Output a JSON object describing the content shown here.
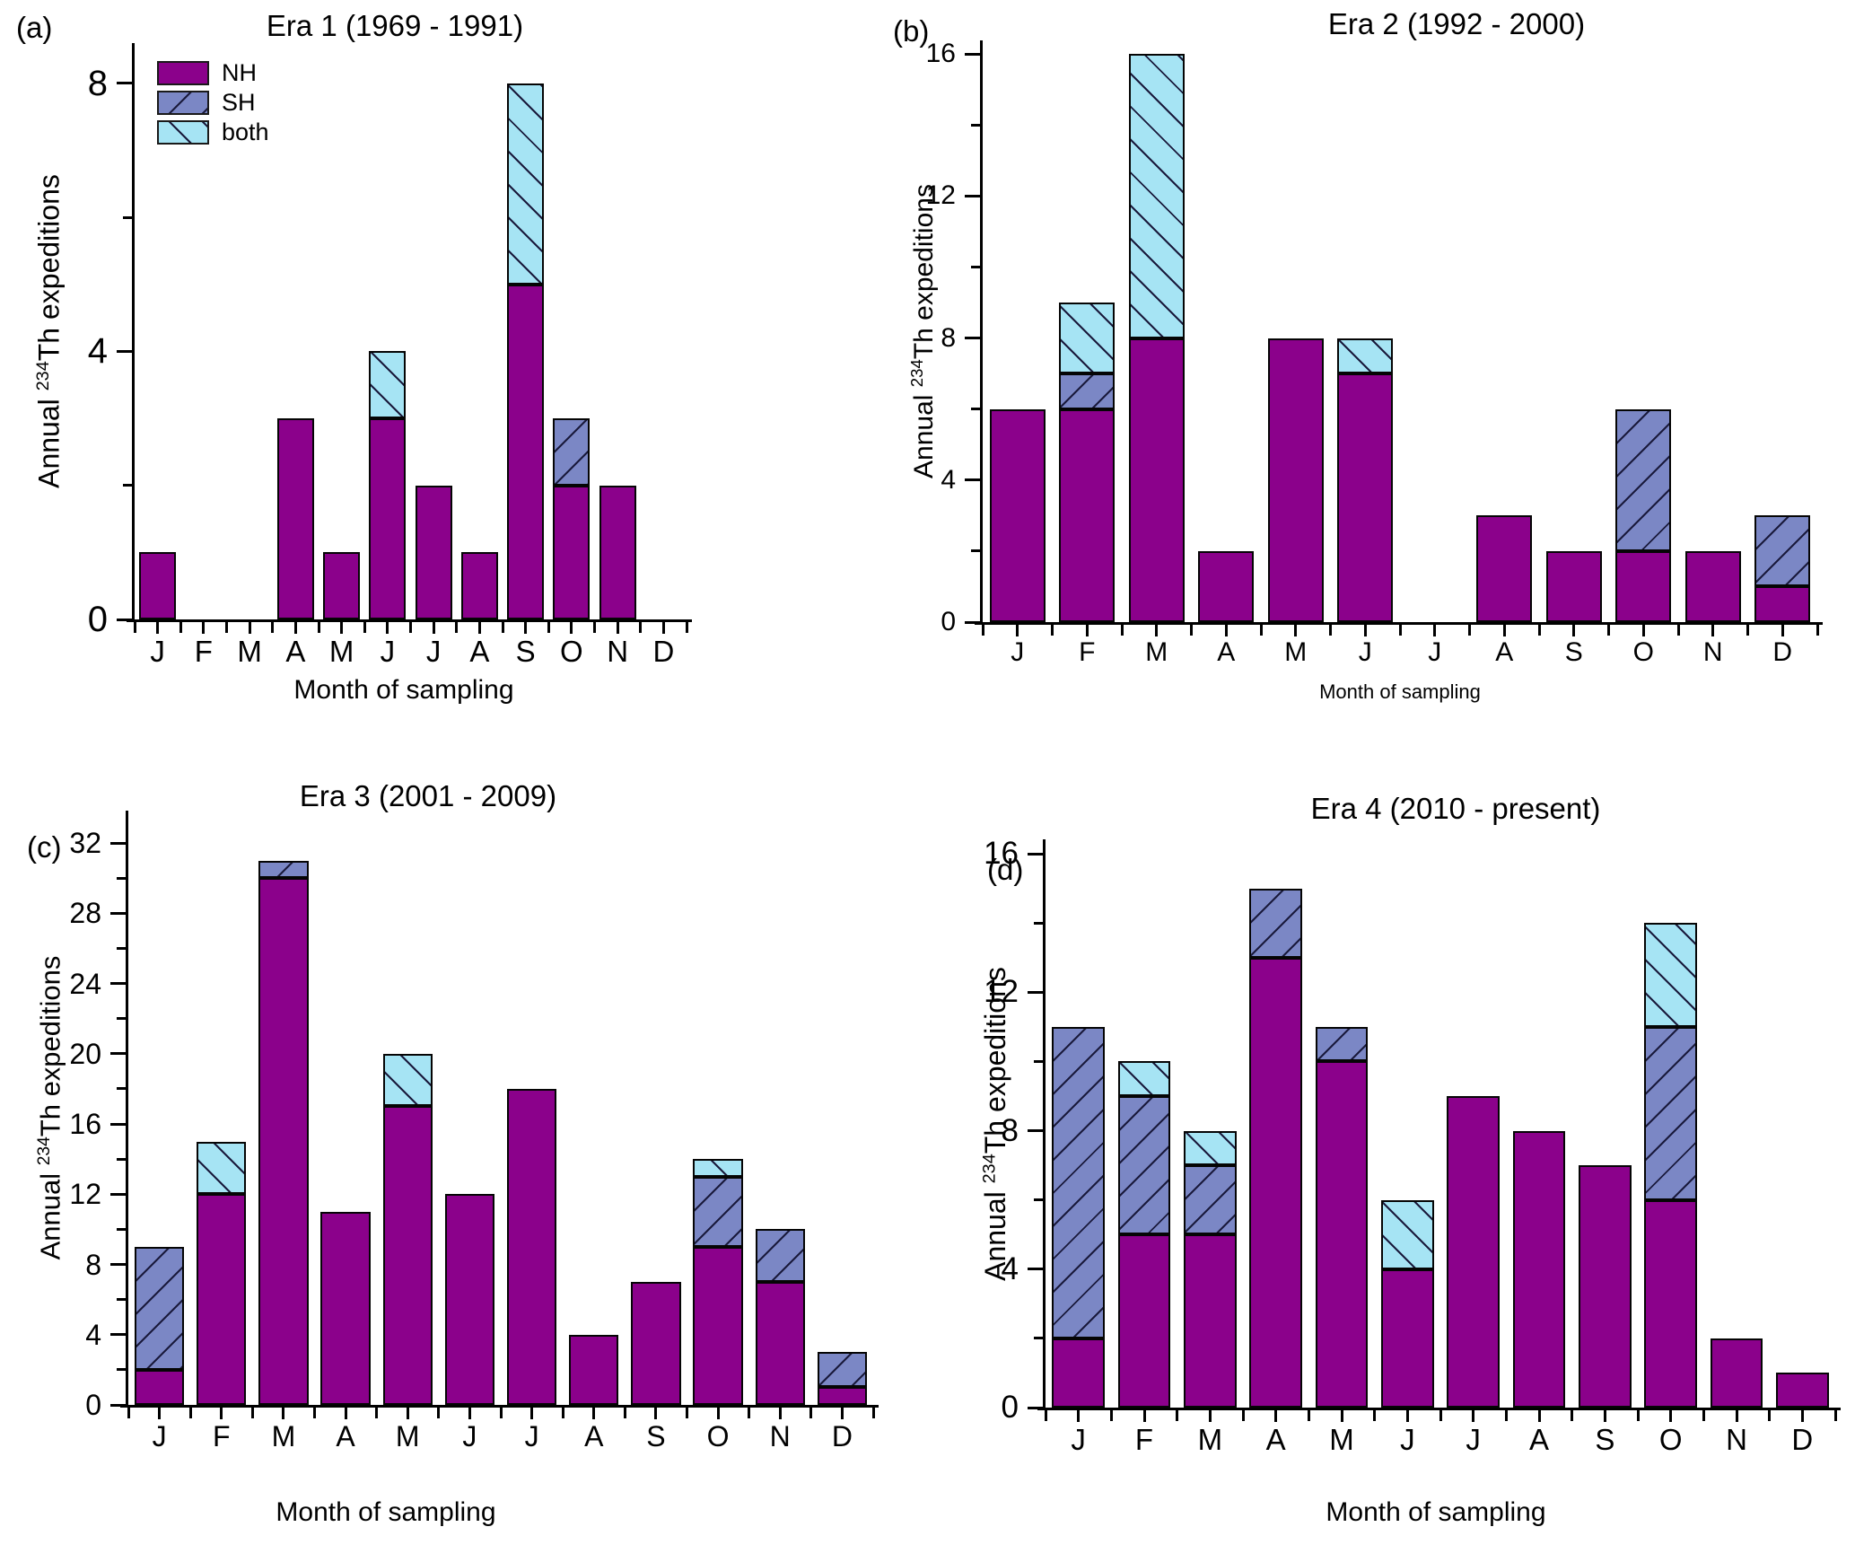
{
  "figure": {
    "ylabel_prefix": "Annual ",
    "ylabel_sup": "234",
    "ylabel_rest": "Th expeditions",
    "xlabel": "Month of sampling",
    "months": [
      "J",
      "F",
      "M",
      "A",
      "M",
      "J",
      "J",
      "A",
      "S",
      "O",
      "N",
      "D"
    ],
    "colors": {
      "NH": "#8B018B",
      "SH": "#7B87C5",
      "both": "#A6E4F4",
      "hatch": "#1A1A3C",
      "axis": "#000000"
    }
  },
  "legend": {
    "position": "upper-left of panel (a)",
    "items": [
      {
        "label": "NH"
      },
      {
        "label": "SH"
      },
      {
        "label": "both"
      }
    ]
  },
  "chart_data": [
    {
      "panel": "(a)",
      "type": "bar",
      "stacked": true,
      "title": "Era 1 (1969 - 1991)",
      "xlabel": "Month of sampling",
      "ylabel": "Annual 234Th expeditions",
      "categories": [
        "J",
        "F",
        "M",
        "A",
        "M",
        "J",
        "J",
        "A",
        "S",
        "O",
        "N",
        "D"
      ],
      "ylim": [
        0,
        8.6
      ],
      "yticks_labeled": [
        0,
        4,
        8
      ],
      "yticks_minor": [
        2,
        6
      ],
      "grid": false,
      "series": [
        {
          "name": "NH",
          "values": [
            1,
            0,
            0,
            3,
            1,
            3,
            2,
            1,
            5,
            2,
            2,
            0
          ]
        },
        {
          "name": "SH",
          "values": [
            0,
            0,
            0,
            0,
            0,
            0,
            0,
            0,
            0,
            1,
            0,
            0
          ]
        },
        {
          "name": "both",
          "values": [
            0,
            0,
            0,
            0,
            0,
            1,
            0,
            0,
            3,
            0,
            0,
            0
          ]
        }
      ]
    },
    {
      "panel": "(b)",
      "type": "bar",
      "stacked": true,
      "title": "Era 2 (1992 - 2000)",
      "xlabel": "Month of sampling",
      "ylabel": "Annual 234Th expeditions",
      "categories": [
        "J",
        "F",
        "M",
        "A",
        "M",
        "J",
        "J",
        "A",
        "S",
        "O",
        "N",
        "D"
      ],
      "ylim": [
        0,
        16.4
      ],
      "yticks_labeled": [
        0,
        4,
        8,
        12,
        16
      ],
      "yticks_minor": [
        2,
        6,
        10,
        14
      ],
      "grid": false,
      "series": [
        {
          "name": "NH",
          "values": [
            6,
            6,
            8,
            2,
            8,
            7,
            0,
            3,
            2,
            2,
            2,
            1
          ]
        },
        {
          "name": "SH",
          "values": [
            0,
            1,
            0,
            0,
            0,
            0,
            0,
            0,
            0,
            4,
            0,
            2
          ]
        },
        {
          "name": "both",
          "values": [
            0,
            2,
            8,
            0,
            0,
            1,
            0,
            0,
            0,
            0,
            0,
            0
          ]
        }
      ]
    },
    {
      "panel": "(c)",
      "type": "bar",
      "stacked": true,
      "title": "Era 3 (2001 - 2009)",
      "xlabel": "Month of sampling",
      "ylabel": "Annual 234Th expeditions",
      "categories": [
        "J",
        "F",
        "M",
        "A",
        "M",
        "J",
        "J",
        "A",
        "S",
        "O",
        "N",
        "D"
      ],
      "ylim": [
        0,
        33.8
      ],
      "yticks_labeled": [
        0,
        4,
        8,
        12,
        16,
        20,
        24,
        28,
        32
      ],
      "yticks_minor": [
        2,
        6,
        10,
        14,
        18,
        22,
        26,
        30
      ],
      "grid": false,
      "series": [
        {
          "name": "NH",
          "values": [
            2,
            12,
            30,
            11,
            17,
            12,
            18,
            4,
            7,
            9,
            7,
            1
          ]
        },
        {
          "name": "SH",
          "values": [
            7,
            0,
            1,
            0,
            0,
            0,
            0,
            0,
            0,
            4,
            3,
            2
          ]
        },
        {
          "name": "both",
          "values": [
            0,
            3,
            0,
            0,
            3,
            0,
            0,
            0,
            0,
            1,
            0,
            0
          ]
        }
      ]
    },
    {
      "panel": "(d)",
      "type": "bar",
      "stacked": true,
      "title": "Era 4 (2010 - present)",
      "xlabel": "Month of sampling",
      "ylabel": "Annual 234Th expeditions",
      "categories": [
        "J",
        "F",
        "M",
        "A",
        "M",
        "J",
        "J",
        "A",
        "S",
        "O",
        "N",
        "D"
      ],
      "ylim": [
        0,
        16.4
      ],
      "yticks_labeled": [
        0,
        4,
        8,
        12,
        16
      ],
      "yticks_minor": [
        2,
        6,
        10,
        14
      ],
      "grid": false,
      "series": [
        {
          "name": "NH",
          "values": [
            2,
            5,
            5,
            13,
            10,
            4,
            9,
            8,
            7,
            6,
            2,
            1
          ]
        },
        {
          "name": "SH",
          "values": [
            9,
            4,
            2,
            2,
            1,
            0,
            0,
            0,
            0,
            5,
            0,
            0
          ]
        },
        {
          "name": "both",
          "values": [
            0,
            1,
            1,
            0,
            0,
            2,
            0,
            0,
            0,
            3,
            0,
            0
          ]
        }
      ]
    }
  ]
}
